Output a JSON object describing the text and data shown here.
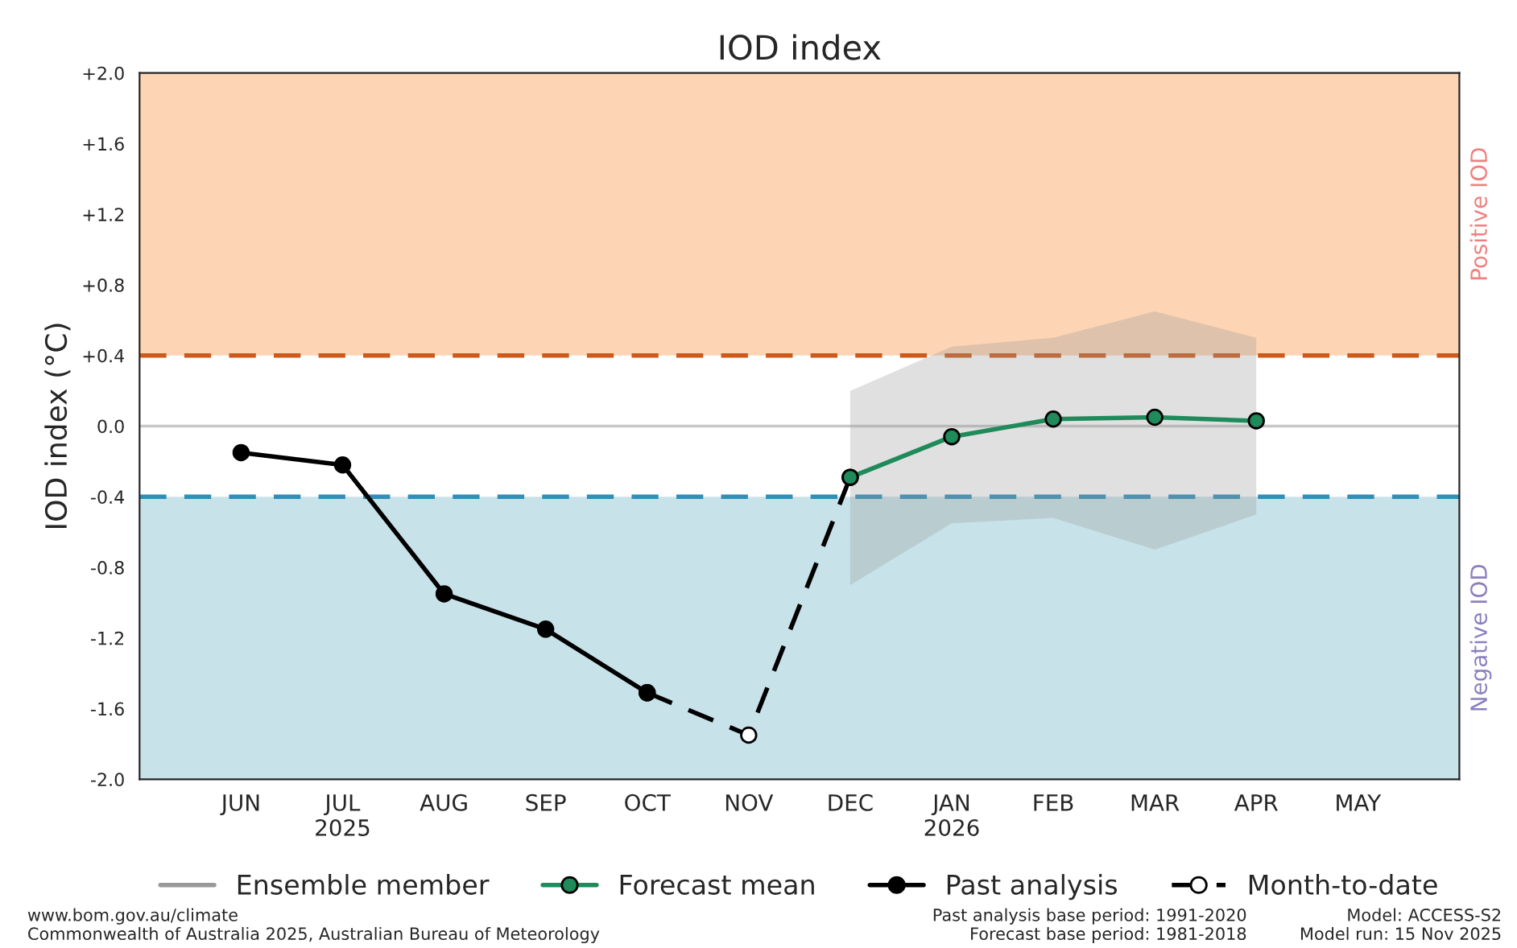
{
  "chart_data": {
    "type": "line",
    "title": "IOD index",
    "ylabel": "IOD index (°C)",
    "categories": [
      "JUN",
      "JUL\n2025",
      "AUG",
      "SEP",
      "OCT",
      "NOV",
      "DEC",
      "JAN\n2026",
      "FEB",
      "MAR",
      "APR",
      "MAY"
    ],
    "ylim": [
      -2.0,
      2.0
    ],
    "yticks": [
      {
        "value": -2.0,
        "label": "-2.0"
      },
      {
        "value": -1.6,
        "label": "-1.6"
      },
      {
        "value": -1.2,
        "label": "-1.2"
      },
      {
        "value": -0.8,
        "label": "-0.8"
      },
      {
        "value": -0.4,
        "label": "-0.4"
      },
      {
        "value": 0.0,
        "label": "0.0"
      },
      {
        "value": 0.4,
        "label": "+0.4"
      },
      {
        "value": 0.8,
        "label": "+0.8"
      },
      {
        "value": 1.2,
        "label": "+1.2"
      },
      {
        "value": 1.6,
        "label": "+1.6"
      },
      {
        "value": 2.0,
        "label": "+2.0"
      }
    ],
    "bands": [
      {
        "axis": "y",
        "from": 0.4,
        "to": 2.0,
        "label": "Positive IOD",
        "color": "#fdd4b4"
      },
      {
        "axis": "y",
        "from": -2.0,
        "to": -0.4,
        "label": "Negative IOD",
        "color": "#c8e2e9"
      }
    ],
    "ref_lines": [
      {
        "axis": "y",
        "value": 0.4,
        "color": "#cc5a1a",
        "line_style": "dashed"
      },
      {
        "axis": "y",
        "value": -0.4,
        "color": "#2e90b8",
        "line_style": "dashed"
      },
      {
        "axis": "y",
        "value": 0.0,
        "color": "#c8c8c8",
        "line_style": "solid"
      }
    ],
    "series": [
      {
        "name": "Ensemble member",
        "color": "#999999",
        "values": [
          null,
          null,
          null,
          null,
          null,
          null,
          null,
          null,
          null,
          null,
          null,
          null
        ],
        "lower": [
          null,
          null,
          null,
          null,
          null,
          null,
          -0.9,
          -0.55,
          -0.52,
          -0.7,
          -0.5,
          null
        ],
        "upper": [
          null,
          null,
          null,
          null,
          null,
          null,
          0.2,
          0.45,
          0.5,
          0.65,
          0.5,
          null
        ],
        "marker": "none",
        "line_style": "solid"
      },
      {
        "name": "Forecast mean",
        "color": "#1f8a5a",
        "values": [
          null,
          null,
          null,
          null,
          null,
          null,
          -0.29,
          -0.06,
          0.04,
          0.05,
          0.03,
          null
        ],
        "marker": "circle",
        "line_style": "solid"
      },
      {
        "name": "Past analysis",
        "color": "#000000",
        "values": [
          -0.15,
          -0.22,
          -0.95,
          -1.15,
          -1.51,
          null,
          null,
          null,
          null,
          null,
          null,
          null
        ],
        "marker": "circle",
        "line_style": "solid"
      },
      {
        "name": "Month-to-date",
        "color": "#000000",
        "values": [
          null,
          null,
          null,
          null,
          -1.51,
          -1.75,
          -0.29,
          null,
          null,
          null,
          null,
          null
        ],
        "marker": "circle",
        "line_style": "dashed"
      }
    ],
    "grid": false,
    "legend": "bottom",
    "annotations": [
      "www.bom.gov.au/climate\nCommonwealth of Australia 2025, Australian Bureau of Meteorology",
      "Past analysis base period: 1991-2020\nForecast base period: 1981-2018",
      "Model: ACCESS-S2\nModel run: 15 Nov 2025"
    ]
  }
}
